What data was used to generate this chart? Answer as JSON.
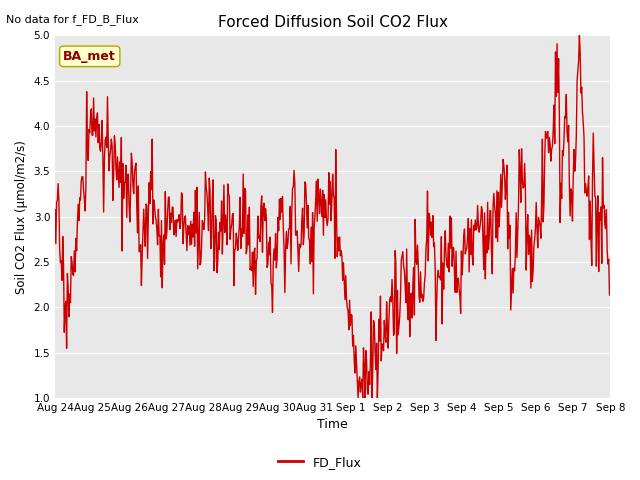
{
  "title": "Forced Diffusion Soil CO2 Flux",
  "subtitle": "No data for f_FD_B_Flux",
  "ylabel": "Soil CO2 Flux (μmol/m2/s)",
  "xlabel": "Time",
  "legend_label": "FD_Flux",
  "annotation": "BA_met",
  "ylim": [
    1.0,
    5.0
  ],
  "yticks": [
    1.0,
    1.5,
    2.0,
    2.5,
    3.0,
    3.5,
    4.0,
    4.5,
    5.0
  ],
  "line_color": "#cc0000",
  "line_width": 1.0,
  "bg_color": "#e8e8e8",
  "annotation_bg": "#ffffcc",
  "annotation_border": "#aaaa00",
  "annotation_text_color": "#880000",
  "fig_width": 6.4,
  "fig_height": 4.8,
  "dpi": 100
}
